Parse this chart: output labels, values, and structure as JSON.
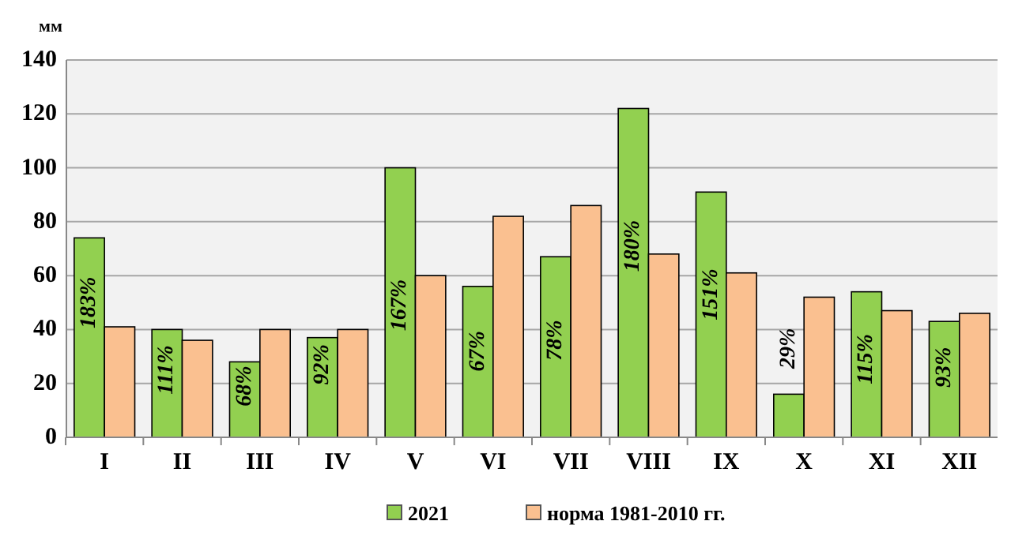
{
  "chart_data": {
    "type": "bar",
    "ylabel": "мм",
    "categories": [
      "I",
      "II",
      "III",
      "IV",
      "V",
      "VI",
      "VII",
      "VIII",
      "IX",
      "X",
      "XI",
      "XII"
    ],
    "series": [
      {
        "name": "2021",
        "color": "#92d050",
        "values": [
          74,
          40,
          28,
          37,
          100,
          56,
          67,
          122,
          91,
          16,
          54,
          43
        ]
      },
      {
        "name": "норма 1981-2010 гг.",
        "color": "#fac090",
        "values": [
          41,
          36,
          40,
          40,
          60,
          82,
          86,
          68,
          61,
          52,
          47,
          46
        ]
      }
    ],
    "annotations": [
      {
        "text": "183%",
        "x": "I",
        "y": 50
      },
      {
        "text": "111%",
        "x": "II",
        "y": 25
      },
      {
        "text": "68%",
        "x": "III",
        "y": 19
      },
      {
        "text": "92%",
        "x": "IV",
        "y": 27
      },
      {
        "text": "167%",
        "x": "V",
        "y": 49
      },
      {
        "text": "67%",
        "x": "VI",
        "y": 32
      },
      {
        "text": "78%",
        "x": "VII",
        "y": 36
      },
      {
        "text": "180%",
        "x": "VIII",
        "y": 71
      },
      {
        "text": "151%",
        "x": "IX",
        "y": 53
      },
      {
        "text": "29%",
        "x": "X",
        "y": 33
      },
      {
        "text": "115%",
        "x": "XI",
        "y": 29
      },
      {
        "text": "93%",
        "x": "XII",
        "y": 26
      }
    ],
    "ylim": [
      0,
      140
    ],
    "yticks": [
      0,
      20,
      40,
      60,
      80,
      100,
      120,
      140
    ],
    "grid": "y",
    "legend": "bottom"
  }
}
